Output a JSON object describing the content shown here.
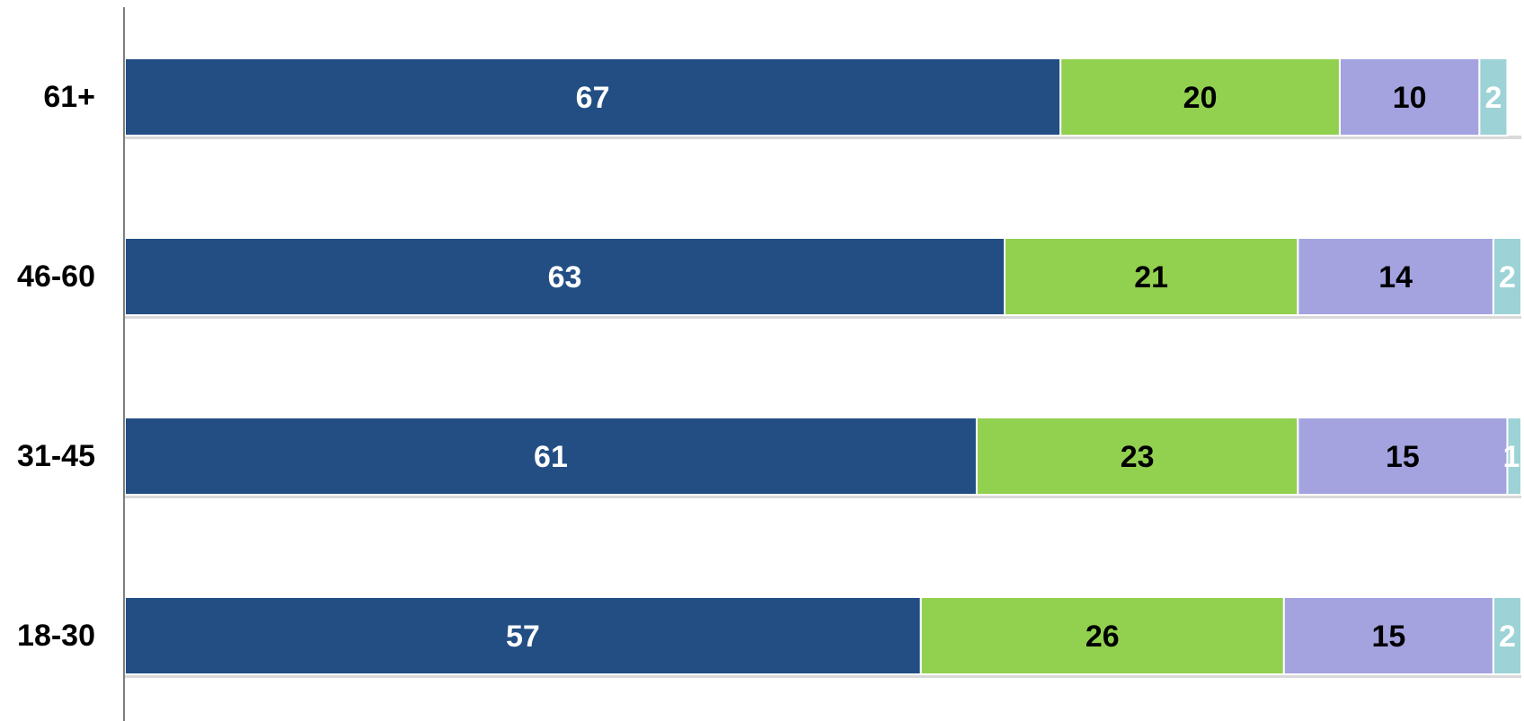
{
  "chart_data": {
    "type": "bar",
    "orientation": "horizontal",
    "stacked": true,
    "categories": [
      "61+",
      "46-60",
      "31-45",
      "18-30"
    ],
    "series": [
      {
        "values": [
          67,
          63,
          61,
          57
        ],
        "color": "#224e83",
        "label_color": "#ffffff"
      },
      {
        "values": [
          20,
          21,
          23,
          26
        ],
        "color": "#92d050",
        "label_color": "#000000"
      },
      {
        "values": [
          10,
          14,
          15,
          15
        ],
        "color": "#a4a3e0",
        "label_color": "#000000"
      },
      {
        "values": [
          2,
          2,
          1,
          2
        ],
        "color": "#9dd3d6",
        "label_color": "#ffffff"
      }
    ],
    "data_labels": [
      [
        "67",
        "20",
        "10",
        "2"
      ],
      [
        "63",
        "21",
        "14",
        "2"
      ],
      [
        "61",
        "23",
        "15",
        "1"
      ],
      [
        "57",
        "26",
        "15",
        "2"
      ]
    ],
    "title": "",
    "xlabel": "",
    "ylabel": "",
    "xlim": [
      0,
      100
    ],
    "grid": false,
    "legend": "none"
  }
}
